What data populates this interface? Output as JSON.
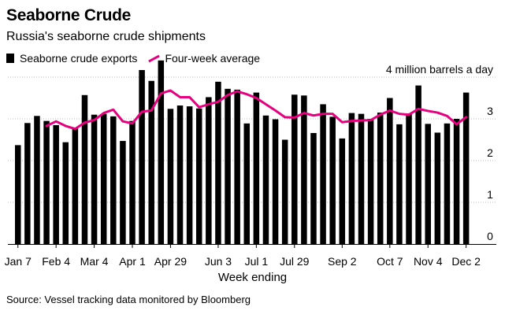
{
  "title": "Seaborne Crude",
  "subtitle": "Russia's seaborne crude shipments",
  "legend": {
    "bars_label": "Seaborne crude exports",
    "line_label": "Four-week average"
  },
  "units_label": "4 million barrels a day",
  "xlabel": "Week ending",
  "source": "Source: Vessel tracking data monitored by Bloomberg",
  "colors": {
    "bars": "#000000",
    "average": "#e6007e",
    "grid": "#bdbdbd"
  },
  "chart_data": {
    "type": "bar",
    "title": "Seaborne Crude",
    "subtitle": "Russia's seaborne crude shipments",
    "xlabel": "Week ending",
    "ylabel": "4 million barrels a day",
    "ylim": [
      0,
      4
    ],
    "yticks": [
      0,
      1,
      2,
      3,
      4
    ],
    "ytick_labels": [
      "0",
      "1",
      "2",
      "3",
      "4 million barrels a day"
    ],
    "grid": "horizontal dotted",
    "xtick_labels": [
      "Jan 7",
      "Feb 4",
      "Mar 4",
      "Apr 1",
      "Apr 29",
      "Jun 3",
      "Jul 1",
      "Jul 29",
      "Sep 2",
      "Oct 7",
      "Nov 4",
      "Dec 2"
    ],
    "xtick_bar_index": [
      0,
      4,
      8,
      12,
      16,
      21,
      25,
      29,
      34,
      39,
      43,
      47
    ],
    "series": [
      {
        "name": "Seaborne crude exports",
        "type": "bar",
        "values": [
          2.37,
          2.9,
          3.07,
          2.95,
          2.85,
          2.44,
          2.78,
          3.57,
          3.1,
          3.12,
          3.06,
          2.47,
          2.95,
          4.17,
          3.91,
          4.4,
          3.24,
          3.32,
          3.3,
          3.25,
          3.52,
          3.89,
          3.72,
          3.7,
          2.89,
          3.63,
          3.08,
          2.99,
          2.5,
          3.58,
          3.56,
          2.66,
          3.35,
          3.05,
          2.53,
          3.14,
          3.12,
          3.0,
          3.15,
          3.5,
          2.87,
          3.13,
          3.8,
          2.88,
          2.67,
          2.89,
          3.0,
          3.63
        ],
        "four_week_average": [
          null,
          null,
          null,
          2.83,
          2.94,
          2.83,
          2.76,
          2.91,
          2.97,
          3.14,
          3.22,
          2.94,
          2.89,
          3.17,
          3.2,
          3.61,
          3.68,
          3.52,
          3.52,
          3.28,
          3.35,
          3.41,
          3.57,
          3.66,
          3.59,
          3.5,
          3.35,
          3.2,
          3.04,
          3.03,
          3.14,
          3.08,
          3.12,
          3.12,
          2.92,
          2.95,
          2.96,
          2.97,
          3.1,
          3.2,
          3.12,
          3.1,
          3.24,
          3.19,
          3.15,
          3.07,
          2.87,
          3.04
        ]
      }
    ]
  }
}
